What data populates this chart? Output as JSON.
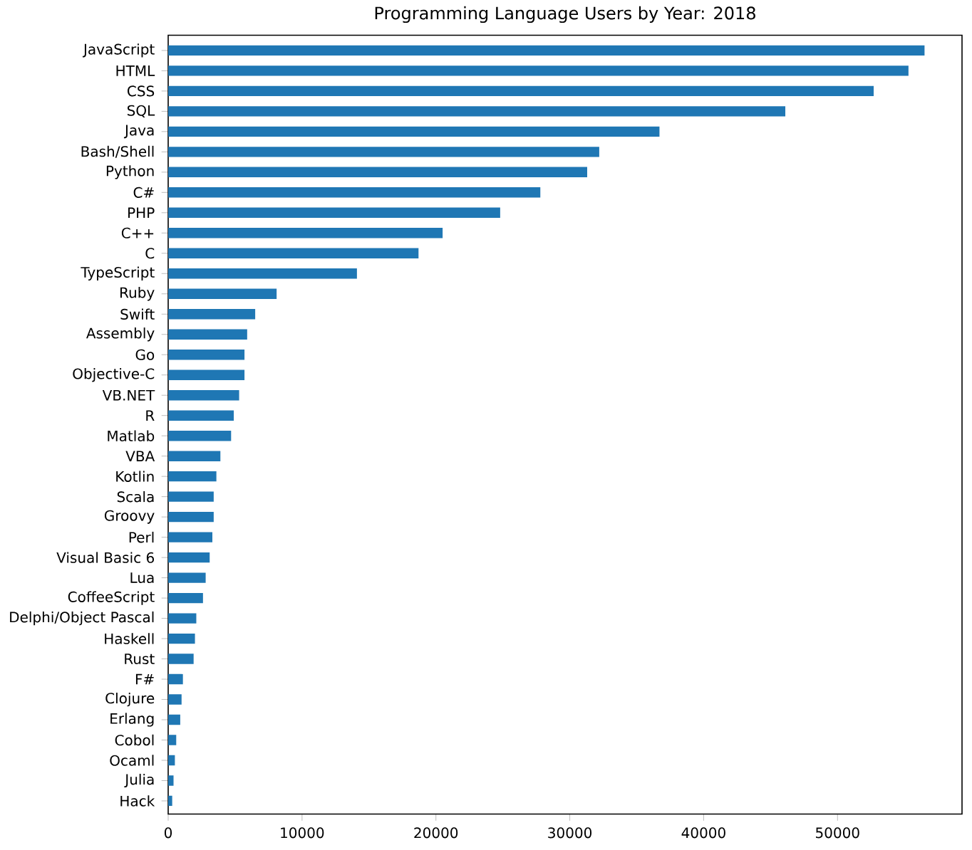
{
  "chart_data": {
    "type": "bar",
    "orientation": "horizontal",
    "title": "Programming Language Users by Year: 2018",
    "categories": [
      "JavaScript",
      "HTML",
      "CSS",
      "SQL",
      "Java",
      "Bash/Shell",
      "Python",
      "C#",
      "PHP",
      "C++",
      "C",
      "TypeScript",
      "Ruby",
      "Swift",
      "Assembly",
      "Go",
      "Objective-C",
      "VB.NET",
      "R",
      "Matlab",
      "VBA",
      "Kotlin",
      "Scala",
      "Groovy",
      "Perl",
      "Visual Basic 6",
      "Lua",
      "CoffeeScript",
      "Delphi/Object Pascal",
      "Haskell",
      "Rust",
      "F#",
      "Clojure",
      "Erlang",
      "Cobol",
      "Ocaml",
      "Julia",
      "Hack"
    ],
    "values": [
      56500,
      55300,
      52700,
      46100,
      36700,
      32200,
      31300,
      27800,
      24800,
      20500,
      18700,
      14100,
      8100,
      6500,
      5900,
      5700,
      5700,
      5300,
      4900,
      4700,
      3900,
      3600,
      3400,
      3400,
      3300,
      3100,
      2800,
      2600,
      2100,
      2000,
      1900,
      1100,
      1000,
      900,
      600,
      500,
      400,
      300
    ],
    "color": "#1f77b4",
    "xlim": [
      0,
      59300
    ],
    "xticks": [
      0,
      10000,
      20000,
      30000,
      40000,
      50000
    ]
  }
}
